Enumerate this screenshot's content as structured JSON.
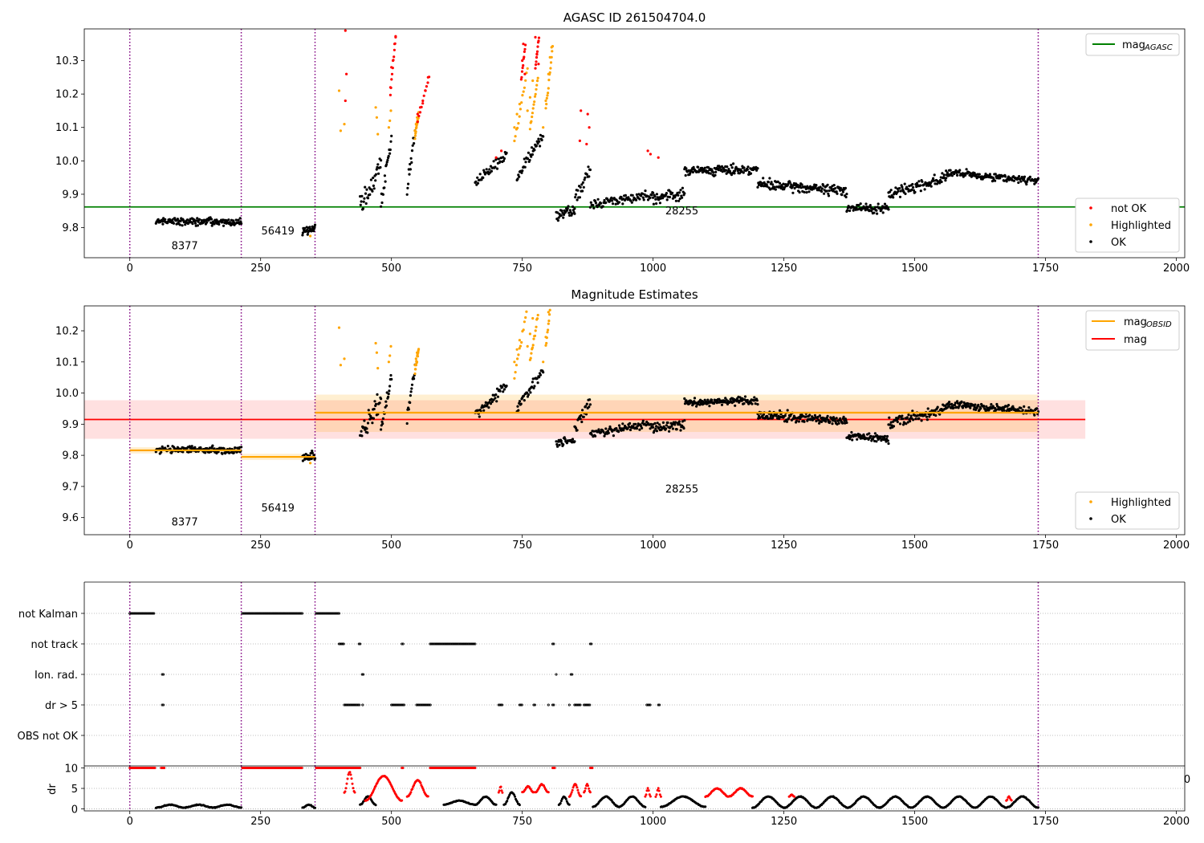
{
  "chart_data": [
    {
      "id": "agasc",
      "type": "scatter",
      "title": "AGASC ID 261504704.0",
      "xlim": [
        -87,
        2016
      ],
      "ylim": [
        9.71,
        10.395
      ],
      "xticks": [
        "0",
        "250",
        "500",
        "750",
        "1000",
        "1250",
        "1500",
        "1750",
        "2000"
      ],
      "yticks": [
        "9.8",
        "9.9",
        "10.0",
        "10.1",
        "10.2",
        "10.3"
      ],
      "obsid_boundaries": [
        0,
        213,
        354,
        1736
      ],
      "obsid_labels": [
        {
          "x": 105,
          "y": 9.735,
          "text": "8377"
        },
        {
          "x": 283,
          "y": 9.78,
          "text": "56419"
        },
        {
          "x": 1055,
          "y": 9.84,
          "text": "28255"
        }
      ],
      "mag_agasc": 9.862,
      "legend_line": {
        "label": "mag",
        "sub": "AGASC",
        "color": "#008000"
      },
      "legend_points": [
        {
          "label": "not OK",
          "color": "#ff0000"
        },
        {
          "label": "Highlighted",
          "color": "#ffa500"
        },
        {
          "label": "OK",
          "color": "#000000"
        }
      ],
      "segments": [
        {
          "x0": 50,
          "x1": 213,
          "y0": 9.82,
          "y1": 9.815,
          "noise": 0.01,
          "n": 150
        },
        {
          "x0": 330,
          "x1": 354,
          "y0": 9.79,
          "y1": 9.8,
          "noise": 0.012,
          "n": 30
        },
        {
          "x0": 440,
          "x1": 480,
          "y0": 9.86,
          "y1": 9.98,
          "noise": 0.03,
          "n": 35
        },
        {
          "x0": 480,
          "x1": 500,
          "y0": 9.88,
          "y1": 10.06,
          "noise": 0.02,
          "n": 20
        },
        {
          "x0": 530,
          "x1": 545,
          "y0": 9.92,
          "y1": 10.08,
          "noise": 0.02,
          "n": 15
        },
        {
          "x0": 660,
          "x1": 720,
          "y0": 9.93,
          "y1": 10.02,
          "noise": 0.015,
          "n": 45
        },
        {
          "x0": 740,
          "x1": 790,
          "y0": 9.95,
          "y1": 10.08,
          "noise": 0.015,
          "n": 40
        },
        {
          "x0": 815,
          "x1": 850,
          "y0": 9.84,
          "y1": 9.85,
          "noise": 0.012,
          "n": 30
        },
        {
          "x0": 850,
          "x1": 880,
          "y0": 9.88,
          "y1": 9.97,
          "noise": 0.02,
          "n": 25
        },
        {
          "x0": 880,
          "x1": 1000,
          "y0": 9.87,
          "y1": 9.9,
          "noise": 0.012,
          "n": 90
        },
        {
          "x0": 1000,
          "x1": 1060,
          "y0": 9.89,
          "y1": 9.9,
          "noise": 0.015,
          "n": 50
        },
        {
          "x0": 1060,
          "x1": 1200,
          "y0": 9.97,
          "y1": 9.975,
          "noise": 0.012,
          "n": 130
        },
        {
          "x0": 1200,
          "x1": 1370,
          "y0": 9.93,
          "y1": 9.91,
          "noise": 0.013,
          "n": 150
        },
        {
          "x0": 1370,
          "x1": 1450,
          "y0": 9.86,
          "y1": 9.855,
          "noise": 0.012,
          "n": 70
        },
        {
          "x0": 1450,
          "x1": 1560,
          "y0": 9.9,
          "y1": 9.95,
          "noise": 0.015,
          "n": 90
        },
        {
          "x0": 1560,
          "x1": 1736,
          "y0": 9.965,
          "y1": 9.94,
          "noise": 0.01,
          "n": 150
        }
      ],
      "highlighted": [
        {
          "x": 400,
          "y": 10.21
        },
        {
          "x": 403,
          "y": 10.09
        },
        {
          "x": 410,
          "y": 10.11
        },
        {
          "x": 470,
          "y": 10.16
        },
        {
          "x": 472,
          "y": 10.13
        },
        {
          "x": 474,
          "y": 10.08
        },
        {
          "x": 495,
          "y": 10.1
        },
        {
          "x": 497,
          "y": 10.12
        },
        {
          "x": 499,
          "y": 10.15
        },
        {
          "x": 545,
          "y": 10.09
        },
        {
          "x": 547,
          "y": 10.11
        },
        {
          "x": 549,
          "y": 10.13
        },
        {
          "x": 735,
          "y": 10.1
        },
        {
          "x": 740,
          "y": 10.14
        },
        {
          "x": 745,
          "y": 10.17
        },
        {
          "x": 760,
          "y": 10.15
        },
        {
          "x": 765,
          "y": 10.19
        },
        {
          "x": 770,
          "y": 10.24
        },
        {
          "x": 790,
          "y": 10.1
        },
        {
          "x": 795,
          "y": 10.18
        },
        {
          "x": 800,
          "y": 10.26
        },
        {
          "x": 803,
          "y": 10.31
        },
        {
          "x": 806,
          "y": 10.34
        },
        {
          "x": 345,
          "y": 9.775
        }
      ],
      "not_ok": [
        {
          "x": 412,
          "y": 10.39
        },
        {
          "x": 414,
          "y": 10.26
        },
        {
          "x": 412,
          "y": 10.18
        },
        {
          "x": 500,
          "y": 10.28
        },
        {
          "x": 503,
          "y": 10.3
        },
        {
          "x": 506,
          "y": 10.35
        },
        {
          "x": 508,
          "y": 10.37
        },
        {
          "x": 498,
          "y": 10.22
        },
        {
          "x": 550,
          "y": 10.14
        },
        {
          "x": 555,
          "y": 10.16
        },
        {
          "x": 560,
          "y": 10.18
        },
        {
          "x": 565,
          "y": 10.21
        },
        {
          "x": 570,
          "y": 10.25
        },
        {
          "x": 700,
          "y": 10.01
        },
        {
          "x": 710,
          "y": 10.03
        },
        {
          "x": 750,
          "y": 10.3
        },
        {
          "x": 752,
          "y": 10.35
        },
        {
          "x": 755,
          "y": 10.26
        },
        {
          "x": 775,
          "y": 10.37
        },
        {
          "x": 778,
          "y": 10.32
        },
        {
          "x": 781,
          "y": 10.29
        },
        {
          "x": 860,
          "y": 10.06
        },
        {
          "x": 862,
          "y": 10.15
        },
        {
          "x": 875,
          "y": 10.14
        },
        {
          "x": 878,
          "y": 10.1
        },
        {
          "x": 873,
          "y": 10.05
        },
        {
          "x": 990,
          "y": 10.03
        },
        {
          "x": 995,
          "y": 10.02
        },
        {
          "x": 1010,
          "y": 10.01
        }
      ]
    },
    {
      "id": "estimates",
      "type": "scatter",
      "title": "Magnitude Estimates",
      "xlim": [
        -87,
        2016
      ],
      "ylim": [
        9.545,
        10.28
      ],
      "xticks": [
        "0",
        "250",
        "500",
        "750",
        "1000",
        "1250",
        "1500",
        "1750",
        "2000"
      ],
      "yticks": [
        "9.6",
        "9.7",
        "9.8",
        "9.9",
        "10.0",
        "10.1",
        "10.2"
      ],
      "obsid_boundaries": [
        0,
        213,
        354,
        1736
      ],
      "obsid_labels": [
        {
          "x": 105,
          "y": 9.575,
          "text": "8377"
        },
        {
          "x": 283,
          "y": 9.62,
          "text": "56419"
        },
        {
          "x": 1055,
          "y": 9.68,
          "text": "28255"
        }
      ],
      "mag": {
        "value": 9.915,
        "band": [
          9.853,
          9.977
        ],
        "x0": -87,
        "x1": 1826,
        "color": "#ff0000"
      },
      "mag_obsid": [
        {
          "x0": 0,
          "x1": 213,
          "value": 9.816,
          "band": [
            9.806,
            9.826
          ]
        },
        {
          "x0": 213,
          "x1": 354,
          "value": 9.795,
          "band": [
            9.785,
            9.805
          ]
        },
        {
          "x0": 354,
          "x1": 1736,
          "value": 9.937,
          "band": [
            9.875,
            9.995
          ]
        }
      ],
      "legend_lines": [
        {
          "label": "mag",
          "sub": "OBSID",
          "color": "#ffa500"
        },
        {
          "label": "mag",
          "sub": "",
          "color": "#ff0000"
        }
      ],
      "legend_points": [
        {
          "label": "Highlighted",
          "color": "#ffa500"
        },
        {
          "label": "OK",
          "color": "#000000"
        }
      ]
    },
    {
      "id": "flags",
      "type": "scatter",
      "xlim": [
        -87,
        2016
      ],
      "categories": [
        "not Kalman",
        "not track",
        "Ion. rad.",
        "dr > 5",
        "OBS not OK"
      ],
      "xticks": [
        "0",
        "250",
        "500",
        "750",
        "1000",
        "1250",
        "1500",
        "1750",
        "2000"
      ],
      "obsid_boundaries": [
        0,
        213,
        354,
        1736
      ],
      "flag_ranges": {
        "not Kalman": [
          [
            0,
            48
          ],
          [
            215,
            330
          ],
          [
            356,
            402
          ]
        ],
        "not track": [
          [
            400,
            410
          ],
          [
            438,
            442
          ],
          [
            520,
            523
          ],
          [
            574,
            660
          ],
          [
            808,
            812
          ],
          [
            880,
            884
          ]
        ],
        "Ion. rad.": [
          [
            62,
            66
          ],
          [
            444,
            447
          ],
          [
            815,
            816
          ],
          [
            843,
            846
          ]
        ],
        "dr > 5": [
          [
            62,
            66
          ],
          [
            410,
            440
          ],
          [
            445,
            447
          ],
          [
            500,
            525
          ],
          [
            548,
            575
          ],
          [
            705,
            712
          ],
          [
            745,
            750
          ],
          [
            772,
            776
          ],
          [
            800,
            802
          ],
          [
            808,
            812
          ],
          [
            840,
            842
          ],
          [
            850,
            862
          ],
          [
            868,
            880
          ],
          [
            988,
            995
          ],
          [
            1010,
            1013
          ]
        ],
        "OBS not OK": []
      }
    },
    {
      "id": "dr",
      "type": "scatter",
      "xlim": [
        -87,
        2016
      ],
      "ylim": [
        -0.5,
        10.5
      ],
      "ylabel": "dr",
      "yticks": [
        "0",
        "5",
        "10"
      ],
      "xticks": [
        "0",
        "250",
        "500",
        "750",
        "1000",
        "1250",
        "1500",
        "1750",
        "2000"
      ],
      "clipped_xtick": "0",
      "obsid_boundaries": [
        0,
        213,
        354,
        1736
      ],
      "red_at_ten": [
        [
          0,
          48
        ],
        [
          60,
          66
        ],
        [
          215,
          330
        ],
        [
          356,
          440
        ],
        [
          520,
          523
        ],
        [
          574,
          660
        ],
        [
          808,
          812
        ],
        [
          880,
          884
        ]
      ],
      "red_arcs": [
        [
          410,
          430,
          4,
          9
        ],
        [
          450,
          520,
          2,
          8
        ],
        [
          530,
          570,
          3,
          7
        ],
        [
          705,
          712,
          4,
          5.5
        ],
        [
          750,
          772,
          4,
          5.5
        ],
        [
          775,
          800,
          4,
          6
        ],
        [
          840,
          862,
          3,
          6
        ],
        [
          868,
          880,
          4,
          6
        ],
        [
          985,
          995,
          3,
          5
        ],
        [
          1005,
          1015,
          3,
          5
        ],
        [
          1100,
          1190,
          3,
          5
        ],
        [
          1260,
          1270,
          3,
          3.5
        ],
        [
          1675,
          1685,
          2,
          3
        ]
      ],
      "black_arcs": [
        [
          50,
          213,
          0.3,
          1
        ],
        [
          330,
          354,
          0.3,
          1
        ],
        [
          440,
          470,
          1,
          3
        ],
        [
          600,
          660,
          1,
          2
        ],
        [
          660,
          700,
          1,
          3
        ],
        [
          715,
          745,
          1,
          4
        ],
        [
          820,
          840,
          1,
          3
        ],
        [
          885,
          985,
          0.5,
          3
        ],
        [
          1015,
          1100,
          0.5,
          3
        ],
        [
          1190,
          1736,
          0.3,
          3
        ]
      ]
    }
  ]
}
